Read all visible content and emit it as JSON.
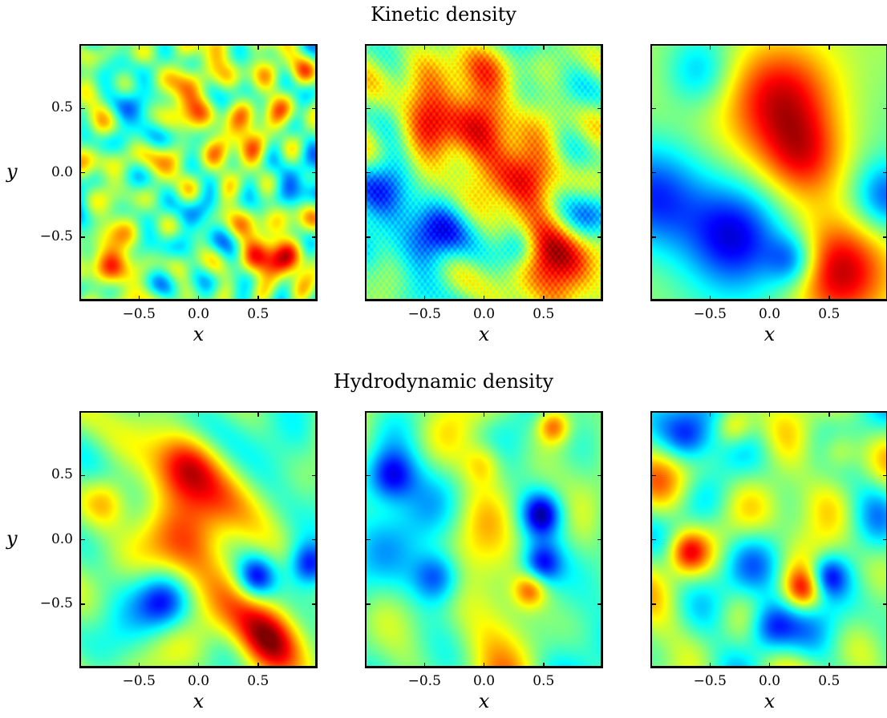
{
  "figure": {
    "row_titles": [
      "Kinetic density",
      "Hydrodynamic density"
    ],
    "xlabel": "x",
    "ylabel": "y"
  },
  "chart_data": [
    {
      "type": "heatmap",
      "row_title": "Kinetic density",
      "colormap": "jet",
      "xlabel": "x",
      "ylabel": "y",
      "xlim": [
        -1,
        1
      ],
      "ylim": [
        -1,
        1
      ],
      "xticks": [
        "−0.5",
        "0.0",
        "0.5"
      ],
      "yticks": [
        "0.5",
        "0.0",
        "−0.5"
      ],
      "show_ylabel": true,
      "smoothness": "noisy",
      "blobs": [
        [
          0.4,
          0.3,
          0.15,
          0.8
        ],
        [
          -0.1,
          0.6,
          0.15,
          0.7
        ],
        [
          -0.7,
          -0.6,
          0.15,
          0.6
        ],
        [
          0.6,
          -0.7,
          0.15,
          0.8
        ],
        [
          0.0,
          -0.3,
          0.15,
          -0.5
        ],
        [
          -0.6,
          0.4,
          0.15,
          -0.5
        ],
        [
          0.8,
          -0.1,
          0.12,
          -0.6
        ]
      ]
    },
    {
      "type": "heatmap",
      "row_title": "Kinetic density",
      "colormap": "jet",
      "xlabel": "x",
      "xlim": [
        -1,
        1
      ],
      "ylim": [
        -1,
        1
      ],
      "xticks": [
        "−0.5",
        "0.0",
        "0.5"
      ],
      "show_ylabel": false,
      "smoothness": "streaky",
      "blobs": [
        [
          -0.2,
          0.5,
          0.3,
          0.9
        ],
        [
          0.3,
          0.0,
          0.2,
          0.8
        ],
        [
          0.6,
          -0.7,
          0.25,
          0.9
        ],
        [
          -0.4,
          -0.5,
          0.2,
          -0.9
        ],
        [
          -0.95,
          -0.2,
          0.2,
          -0.8
        ],
        [
          0.95,
          -0.3,
          0.15,
          -0.8
        ],
        [
          0.3,
          -0.6,
          0.12,
          -0.7
        ]
      ]
    },
    {
      "type": "heatmap",
      "row_title": "Kinetic density",
      "colormap": "jet",
      "xlabel": "x",
      "xlim": [
        -1,
        1
      ],
      "ylim": [
        -1,
        1
      ],
      "xticks": [
        "−0.5",
        "0.0",
        "0.5"
      ],
      "show_ylabel": false,
      "smoothness": "smooth",
      "blobs": [
        [
          0.1,
          0.6,
          0.35,
          1.0
        ],
        [
          0.3,
          0.1,
          0.25,
          0.6
        ],
        [
          0.6,
          -0.8,
          0.3,
          1.0
        ],
        [
          -0.3,
          -0.5,
          0.3,
          -0.9
        ],
        [
          -1.0,
          -0.2,
          0.3,
          -0.8
        ],
        [
          1.0,
          -0.2,
          0.2,
          -0.7
        ],
        [
          0.2,
          -0.7,
          0.15,
          -0.7
        ],
        [
          -0.6,
          0.8,
          0.2,
          -0.5
        ]
      ]
    },
    {
      "type": "heatmap",
      "row_title": "Hydrodynamic density",
      "colormap": "jet",
      "xlabel": "x",
      "ylabel": "y",
      "xlim": [
        -1,
        1
      ],
      "ylim": [
        -1,
        1
      ],
      "xticks": [
        "−0.5",
        "0.0",
        "0.5"
      ],
      "yticks": [
        "0.5",
        "0.0",
        "−0.5"
      ],
      "show_ylabel": true,
      "smoothness": "blobby",
      "blobs": [
        [
          -0.1,
          0.6,
          0.2,
          0.8
        ],
        [
          0.0,
          -0.1,
          0.25,
          0.8
        ],
        [
          0.6,
          -0.8,
          0.2,
          1.0
        ],
        [
          -0.8,
          0.3,
          0.15,
          0.7
        ],
        [
          0.5,
          -0.3,
          0.12,
          -0.9
        ],
        [
          0.95,
          -0.2,
          0.12,
          -0.8
        ],
        [
          -0.3,
          -0.5,
          0.15,
          -0.6
        ]
      ]
    },
    {
      "type": "heatmap",
      "row_title": "Hydrodynamic density",
      "colormap": "jet",
      "xlabel": "x",
      "xlim": [
        -1,
        1
      ],
      "ylim": [
        -1,
        1
      ],
      "xticks": [
        "−0.5",
        "0.0",
        "0.5"
      ],
      "show_ylabel": false,
      "smoothness": "blobby",
      "blobs": [
        [
          -0.8,
          0.5,
          0.15,
          -0.9
        ],
        [
          0.5,
          0.2,
          0.12,
          -0.9
        ],
        [
          -0.4,
          -0.3,
          0.15,
          -0.9
        ],
        [
          0.5,
          -0.2,
          0.12,
          -0.8
        ],
        [
          0.6,
          0.9,
          0.1,
          0.8
        ],
        [
          0.4,
          -0.4,
          0.1,
          0.7
        ],
        [
          0.0,
          0.6,
          0.12,
          0.5
        ]
      ]
    },
    {
      "type": "heatmap",
      "row_title": "Hydrodynamic density",
      "colormap": "jet",
      "xlabel": "x",
      "xlim": [
        -1,
        1
      ],
      "ylim": [
        -1,
        1
      ],
      "xticks": [
        "−0.5",
        "0.0",
        "0.5"
      ],
      "show_ylabel": false,
      "smoothness": "blobby",
      "blobs": [
        [
          -0.7,
          0.8,
          0.15,
          -0.9
        ],
        [
          0.0,
          -0.7,
          0.15,
          -1.0
        ],
        [
          0.5,
          -0.3,
          0.12,
          -0.9
        ],
        [
          0.3,
          -0.4,
          0.12,
          0.9
        ],
        [
          -0.7,
          -0.1,
          0.12,
          0.8
        ],
        [
          -0.3,
          0.9,
          0.12,
          0.8
        ],
        [
          0.6,
          0.7,
          0.12,
          0.6
        ]
      ]
    }
  ]
}
